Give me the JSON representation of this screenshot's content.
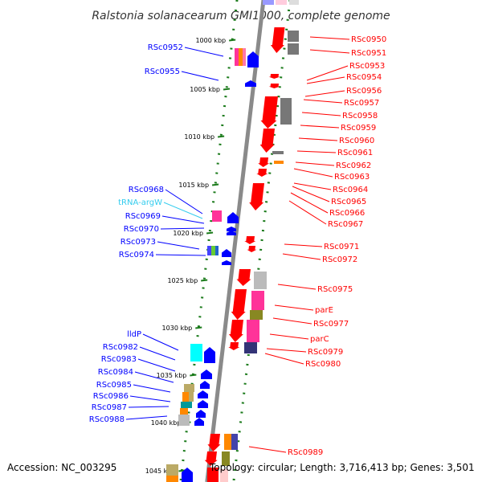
{
  "title": "Ralstonia solanacearum GMI1000, complete genome",
  "accession": "Accession: NC_003295",
  "topology": "Topology: circular; Length: 3,716,413 bp; Genes: 3,501",
  "colors": {
    "axis": "#8a8a8a",
    "tick": "#1a7a1a",
    "forward": "#0000ff",
    "reverse": "#ff0000",
    "trna": "#33ccee",
    "pink": "#ff3399",
    "orange": "#ff8800",
    "gray": "#777777",
    "lightgray": "#cccccc",
    "olive": "#888822",
    "navy": "#333377",
    "cyan": "#00ffff",
    "tan": "#bbaa66",
    "lime": "#66cc33",
    "teal": "#009999"
  },
  "scale_labels": [
    "1000 kbp",
    "1005 kbp",
    "1010 kbp",
    "1015 kbp",
    "1020 kbp",
    "1025 kbp",
    "1030 kbp",
    "1035 kbp",
    "1040 kbp",
    "1045 kbp"
  ],
  "left_labels": [
    {
      "text": "RSc0952",
      "kind": "forward"
    },
    {
      "text": "RSc0955",
      "kind": "forward"
    },
    {
      "text": "RSc0968",
      "kind": "forward"
    },
    {
      "text": "tRNA-argW",
      "kind": "trna"
    },
    {
      "text": "RSc0969",
      "kind": "forward"
    },
    {
      "text": "RSc0970",
      "kind": "forward"
    },
    {
      "text": "RSc0973",
      "kind": "forward"
    },
    {
      "text": "RSc0974",
      "kind": "forward"
    },
    {
      "text": "lldP",
      "kind": "forward"
    },
    {
      "text": "RSc0982",
      "kind": "forward"
    },
    {
      "text": "RSc0983",
      "kind": "forward"
    },
    {
      "text": "RSc0984",
      "kind": "forward"
    },
    {
      "text": "RSc0985",
      "kind": "forward"
    },
    {
      "text": "RSc0986",
      "kind": "forward"
    },
    {
      "text": "RSc0987",
      "kind": "forward"
    },
    {
      "text": "RSc0988",
      "kind": "forward"
    }
  ],
  "right_labels": [
    {
      "text": "RSc0950"
    },
    {
      "text": "RSc0951"
    },
    {
      "text": "RSc0953"
    },
    {
      "text": "RSc0954"
    },
    {
      "text": "RSc0956"
    },
    {
      "text": "RSc0957"
    },
    {
      "text": "RSc0958"
    },
    {
      "text": "RSc0959"
    },
    {
      "text": "RSc0960"
    },
    {
      "text": "RSc0961"
    },
    {
      "text": "RSc0962"
    },
    {
      "text": "RSc0963"
    },
    {
      "text": "RSc0964"
    },
    {
      "text": "RSc0965"
    },
    {
      "text": "RSc0966"
    },
    {
      "text": "RSc0967"
    },
    {
      "text": "RSc0971"
    },
    {
      "text": "RSc0972"
    },
    {
      "text": "RSc0975"
    },
    {
      "text": "parE"
    },
    {
      "text": "RSc0977"
    },
    {
      "text": "parC"
    },
    {
      "text": "RSc0979"
    },
    {
      "text": "RSc0980"
    },
    {
      "text": "RSc0989"
    }
  ]
}
